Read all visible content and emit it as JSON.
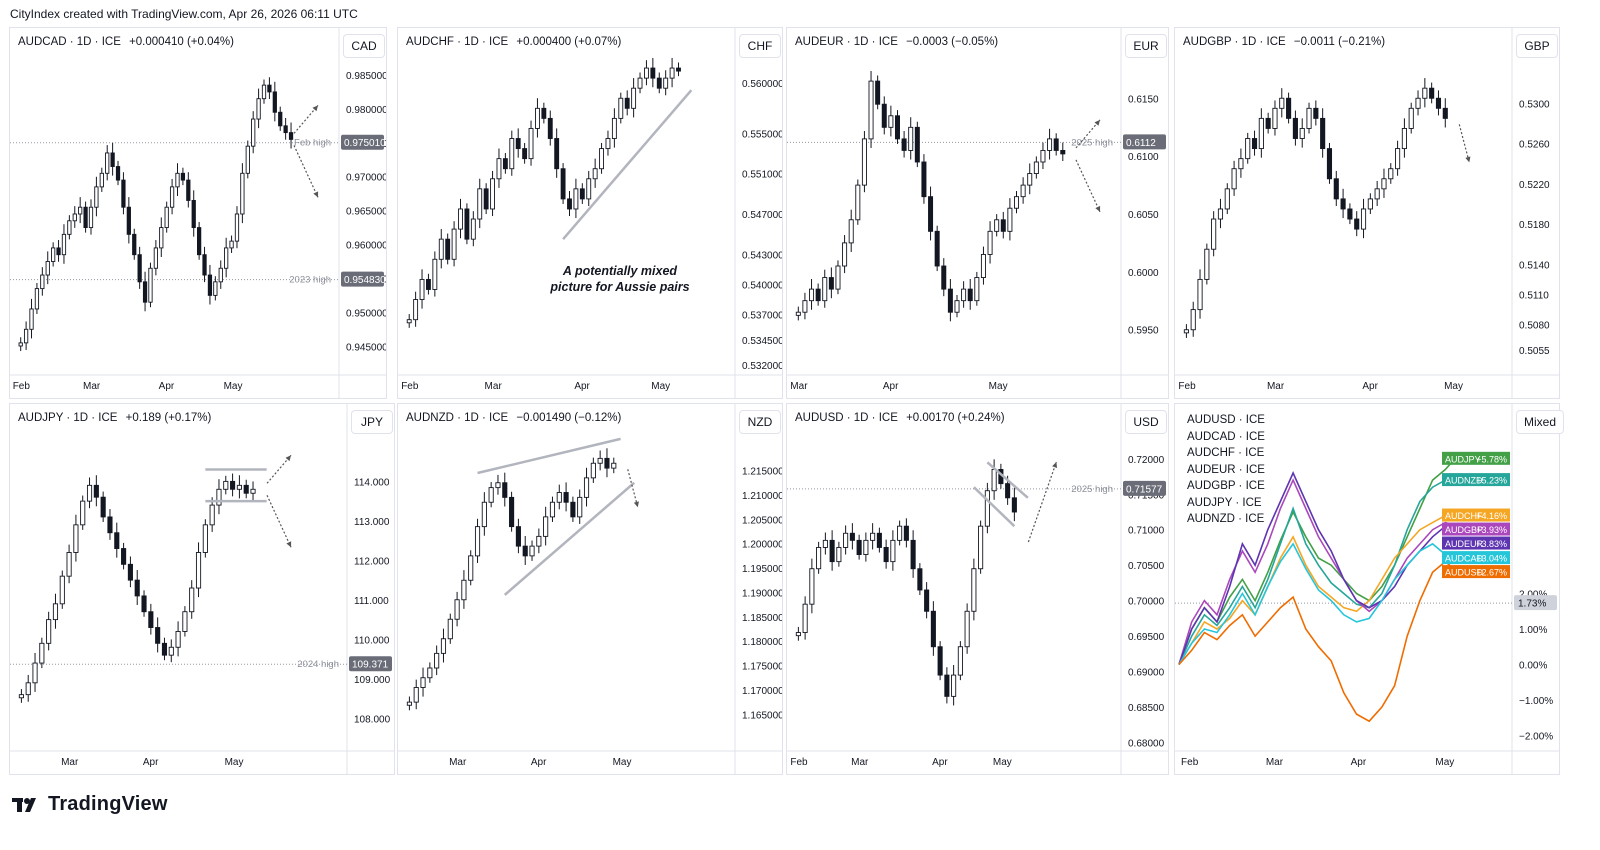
{
  "header": {
    "text": "CityIndex created with TradingView.com, Apr 26, 2026 06:11 UTC"
  },
  "footer": {
    "brand": "TradingView"
  },
  "colors": {
    "up": "#ffffff",
    "down": "#131722",
    "grid": "#f0f3fa",
    "guide": "#b2b5be",
    "trend": "#b2b5be"
  },
  "chart_data": [
    {
      "type": "candlestick",
      "symbol": "AUDCAD",
      "title": "AUDCAD · 1D · ICE",
      "change": "+0.000410 (+0.04%)",
      "currency": "CAD",
      "ylim": [
        0.9415,
        0.9875
      ],
      "x_labels": [
        "Feb",
        "Mar",
        "Apr",
        "May"
      ],
      "y_ticks": [
        "0.985000",
        "0.980000",
        "0.975000",
        "0.970000",
        "0.965000",
        "0.960000",
        "0.955000",
        "0.950000",
        "0.945000"
      ],
      "y_tick_values": [
        0.985,
        0.98,
        0.975,
        0.97,
        0.965,
        0.96,
        0.955,
        0.95,
        0.945
      ],
      "levels": [
        {
          "label": "Feb high",
          "value": 0.97501,
          "badge": "0.975010"
        },
        {
          "label": "2023 high",
          "value": 0.95483,
          "badge": "0.954830"
        }
      ],
      "closes": [
        0.9455,
        0.9475,
        0.9505,
        0.9535,
        0.9555,
        0.9575,
        0.9595,
        0.9585,
        0.9615,
        0.9635,
        0.9645,
        0.9655,
        0.9625,
        0.9655,
        0.9685,
        0.9705,
        0.9735,
        0.9715,
        0.9695,
        0.9655,
        0.9615,
        0.9585,
        0.9545,
        0.9515,
        0.9565,
        0.9595,
        0.9625,
        0.9655,
        0.9685,
        0.9705,
        0.9695,
        0.9665,
        0.9625,
        0.9585,
        0.9555,
        0.9525,
        0.9545,
        0.9565,
        0.9595,
        0.9605,
        0.9645,
        0.9705,
        0.9745,
        0.9785,
        0.9815,
        0.9835,
        0.9825,
        0.9795,
        0.9775,
        0.9765,
        0.9755
      ],
      "arrows": "split",
      "events": [],
      "months_at": [
        0,
        13,
        27,
        39
      ]
    },
    {
      "type": "candlestick",
      "symbol": "AUDCHF",
      "title": "AUDCHF · 1D · ICE",
      "change": "+0.000400 (+0.07%)",
      "currency": "CHF",
      "ylim": [
        0.5315,
        0.5625
      ],
      "x_labels": [
        "Feb",
        "Mar",
        "Apr",
        "May"
      ],
      "y_ticks": [
        "0.560000",
        "0.555000",
        "0.551000",
        "0.547000",
        "0.543000",
        "0.540000",
        "0.537000",
        "0.534500",
        "0.532000"
      ],
      "y_tick_values": [
        0.56,
        0.555,
        0.551,
        0.547,
        0.543,
        0.54,
        0.537,
        0.5345,
        0.532
      ],
      "levels": [],
      "annotation": "A potentially mixed picture for Aussie pairs",
      "closes": [
        0.5365,
        0.5385,
        0.5405,
        0.5395,
        0.5425,
        0.5445,
        0.5425,
        0.5455,
        0.5475,
        0.5445,
        0.5465,
        0.5495,
        0.5475,
        0.5505,
        0.5525,
        0.5515,
        0.5545,
        0.5535,
        0.5525,
        0.5555,
        0.5575,
        0.5565,
        0.5545,
        0.5515,
        0.5485,
        0.5475,
        0.5495,
        0.5485,
        0.5505,
        0.5515,
        0.5535,
        0.5545,
        0.5565,
        0.5585,
        0.5575,
        0.5595,
        0.5605,
        0.5615,
        0.5605,
        0.5595,
        0.5605,
        0.5615,
        0.5612
      ],
      "arrows": "none",
      "events": [],
      "months_at": [
        0,
        13,
        27,
        39
      ]
    },
    {
      "type": "candlestick",
      "symbol": "AUDEUR",
      "title": "AUDEUR · 1D · ICE",
      "change": "−0.0003 (−0.05%)",
      "currency": "EUR",
      "ylim": [
        0.5915,
        0.6185
      ],
      "x_labels": [
        "Mar",
        "Apr",
        "May"
      ],
      "y_ticks": [
        "0.6150",
        "0.6100",
        "0.6050",
        "0.6000",
        "0.5950"
      ],
      "y_tick_values": [
        0.615,
        0.61,
        0.605,
        0.6,
        0.595
      ],
      "levels": [
        {
          "label": "2025 high",
          "value": 0.6112,
          "badge": "0.6112"
        }
      ],
      "closes": [
        0.5965,
        0.5975,
        0.5985,
        0.5975,
        0.5995,
        0.5985,
        0.6005,
        0.6025,
        0.6045,
        0.6075,
        0.6115,
        0.6165,
        0.6145,
        0.6125,
        0.6135,
        0.6115,
        0.6105,
        0.6125,
        0.6095,
        0.6065,
        0.6035,
        0.6005,
        0.5985,
        0.5965,
        0.5975,
        0.5985,
        0.5975,
        0.5995,
        0.6015,
        0.6035,
        0.6045,
        0.6035,
        0.6055,
        0.6065,
        0.6075,
        0.6085,
        0.6095,
        0.6105,
        0.6115,
        0.6105,
        0.6102
      ],
      "arrows": "split",
      "events": [],
      "months_at": [
        0,
        14,
        30,
        39
      ]
    },
    {
      "type": "candlestick",
      "symbol": "AUDGBP",
      "title": "AUDGBP · 1D · ICE",
      "change": "−0.0011 (−0.21%)",
      "currency": "GBP",
      "ylim": [
        0.5035,
        0.5345
      ],
      "x_labels": [
        "Feb",
        "Mar",
        "Apr",
        "May"
      ],
      "y_ticks": [
        "0.5300",
        "0.5260",
        "0.5220",
        "0.5180",
        "0.5140",
        "0.5110",
        "0.5080",
        "0.5055"
      ],
      "y_tick_values": [
        0.53,
        0.526,
        0.522,
        0.518,
        0.514,
        0.511,
        0.508,
        0.5055
      ],
      "levels": [],
      "closes": [
        0.5075,
        0.5095,
        0.5125,
        0.5155,
        0.5185,
        0.5195,
        0.5215,
        0.5235,
        0.5245,
        0.5265,
        0.5255,
        0.5285,
        0.5275,
        0.5295,
        0.5305,
        0.5285,
        0.5265,
        0.5275,
        0.5295,
        0.5285,
        0.5255,
        0.5225,
        0.5205,
        0.5195,
        0.5185,
        0.5175,
        0.5195,
        0.5205,
        0.5215,
        0.5225,
        0.5235,
        0.5255,
        0.5275,
        0.5295,
        0.5305,
        0.5315,
        0.5305,
        0.5295,
        0.5285
      ],
      "arrows": "down",
      "events": [],
      "months_at": [
        0,
        13,
        27,
        39
      ]
    },
    {
      "type": "candlestick",
      "symbol": "AUDJPY",
      "title": "AUDJPY · 1D · ICE",
      "change": "+0.189 (+0.17%)",
      "currency": "JPY",
      "ylim": [
        107.3,
        115.2
      ],
      "x_labels": [
        "Mar",
        "Apr",
        "May"
      ],
      "y_ticks": [
        "114.000",
        "113.000",
        "112.000",
        "111.000",
        "110.000",
        "109.000",
        "108.000"
      ],
      "y_tick_values": [
        114,
        113,
        112,
        111,
        110,
        109,
        108
      ],
      "levels": [
        {
          "label": "2024 high",
          "value": 109.371,
          "badge": "109.371"
        }
      ],
      "closes": [
        108.6,
        108.9,
        109.4,
        109.9,
        110.5,
        110.9,
        111.6,
        112.2,
        112.9,
        113.5,
        113.9,
        113.6,
        113.1,
        112.7,
        112.3,
        111.9,
        111.5,
        111.1,
        110.7,
        110.3,
        109.9,
        109.6,
        109.8,
        110.2,
        110.7,
        111.3,
        112.2,
        112.9,
        113.4,
        113.8,
        114.0,
        113.8,
        113.9,
        113.7,
        113.8
      ],
      "arrows": "split",
      "events": [],
      "months_at": [
        7,
        19,
        31
      ]
    },
    {
      "type": "candlestick",
      "symbol": "AUDNZD",
      "title": "AUDNZD · 1D · ICE",
      "change": "−0.001490 (−0.12%)",
      "currency": "NZD",
      "ylim": [
        1.1585,
        1.2225
      ],
      "x_labels": [
        "Mar",
        "Apr",
        "May"
      ],
      "y_ticks": [
        "1.215000",
        "1.210000",
        "1.205000",
        "1.200000",
        "1.195000",
        "1.190000",
        "1.185000",
        "1.180000",
        "1.175000",
        "1.170000",
        "1.165000"
      ],
      "y_tick_values": [
        1.215,
        1.21,
        1.205,
        1.2,
        1.195,
        1.19,
        1.185,
        1.18,
        1.175,
        1.17,
        1.165
      ],
      "levels": [],
      "closes": [
        1.1675,
        1.1705,
        1.1725,
        1.1745,
        1.1775,
        1.1805,
        1.1845,
        1.1885,
        1.1925,
        1.1975,
        1.2035,
        1.2085,
        1.2115,
        1.2125,
        1.2095,
        1.2035,
        1.1995,
        1.1975,
        1.1995,
        1.2015,
        1.2055,
        1.2085,
        1.2105,
        1.2085,
        1.2055,
        1.2095,
        1.2135,
        1.2165,
        1.2175,
        1.2155,
        1.2165
      ],
      "arrows": "down",
      "events": [],
      "months_at": [
        7,
        19,
        31
      ]
    },
    {
      "type": "candlestick",
      "symbol": "AUDUSD",
      "title": "AUDUSD · 1D · ICE",
      "change": "+0.00170 (+0.24%)",
      "currency": "USD",
      "ylim": [
        0.6795,
        0.7235
      ],
      "x_labels": [
        "Feb",
        "Mar",
        "Apr",
        "May"
      ],
      "y_ticks": [
        "0.72000",
        "0.71500",
        "0.71000",
        "0.70500",
        "0.70000",
        "0.69500",
        "0.69000",
        "0.68500",
        "0.68000"
      ],
      "y_tick_values": [
        0.72,
        0.715,
        0.71,
        0.705,
        0.7,
        0.695,
        0.69,
        0.685,
        0.68
      ],
      "levels": [
        {
          "label": "2025 high",
          "value": 0.71577,
          "badge": "0.71577"
        }
      ],
      "closes": [
        0.6955,
        0.6995,
        0.7045,
        0.7075,
        0.7085,
        0.7055,
        0.7075,
        0.7095,
        0.7085,
        0.7065,
        0.7085,
        0.7095,
        0.7075,
        0.7055,
        0.7085,
        0.7105,
        0.7085,
        0.7045,
        0.7015,
        0.6985,
        0.6935,
        0.6895,
        0.6865,
        0.6895,
        0.6935,
        0.6985,
        0.7045,
        0.7105,
        0.7155,
        0.7185,
        0.7165,
        0.7145,
        0.7125
      ],
      "arrows": "up",
      "events": [],
      "months_at": [
        0,
        9,
        21,
        30
      ]
    },
    {
      "type": "line",
      "symbol": "Mixed",
      "currency": "Mixed",
      "ylim": [
        -2.3,
        6.5
      ],
      "x_labels": [
        "Feb",
        "Mar",
        "Apr",
        "May"
      ],
      "y_ticks": [
        "2.00%",
        "1.00%",
        "0.00%",
        "−1.00%",
        "−2.00%"
      ],
      "y_tick_values": [
        2,
        1,
        0,
        -1,
        -2
      ],
      "legend": [
        "AUDUSD · ICE",
        "AUDCAD · ICE",
        "AUDCHF · ICE",
        "AUDEUR · ICE",
        "AUDGBP · ICE",
        "AUDJPY · ICE",
        "AUDNZD · ICE"
      ],
      "level_badge": {
        "value": 1.73,
        "text": "1.73%"
      },
      "series": [
        {
          "name": "AUDJPY",
          "label": "+5.78%",
          "color": "#43a047",
          "values": [
            0,
            1.0,
            1.6,
            1.2,
            1.9,
            2.4,
            1.8,
            2.6,
            3.5,
            4.3,
            3.6,
            3.0,
            2.8,
            2.4,
            2.0,
            1.8,
            2.2,
            2.8,
            3.6,
            4.4,
            5.2,
            5.5,
            5.9,
            5.8
          ]
        },
        {
          "name": "AUDNZD",
          "label": "+5.23%",
          "color": "#26a69a",
          "values": [
            0,
            0.8,
            1.4,
            1.1,
            1.6,
            2.2,
            1.6,
            2.4,
            3.4,
            4.4,
            3.4,
            2.8,
            2.3,
            2.0,
            1.7,
            1.6,
            2.0,
            2.8,
            3.8,
            4.6,
            5.0,
            5.2,
            5.3,
            5.2
          ]
        },
        {
          "name": "AUDCHF",
          "label": "+4.16%",
          "color": "#f5a623",
          "values": [
            0,
            0.6,
            1.2,
            1.0,
            1.3,
            1.8,
            1.4,
            2.2,
            3.0,
            3.6,
            2.8,
            2.2,
            1.9,
            1.6,
            1.5,
            1.8,
            2.4,
            3.0,
            3.4,
            3.8,
            4.0,
            4.2,
            4.2,
            4.2
          ]
        },
        {
          "name": "AUDGBP",
          "label": "+3.93%",
          "color": "#ab47bc",
          "values": [
            0,
            1.2,
            1.8,
            1.4,
            2.4,
            3.2,
            2.6,
            3.4,
            4.4,
            5.2,
            4.4,
            3.6,
            3.0,
            2.4,
            1.8,
            1.5,
            1.8,
            2.4,
            3.0,
            3.4,
            3.8,
            4.0,
            3.9,
            3.9
          ]
        },
        {
          "name": "AUDEUR",
          "label": "+3.83%",
          "color": "#5e35b1",
          "values": [
            0,
            1.0,
            1.6,
            1.2,
            2.2,
            3.4,
            2.8,
            3.8,
            4.6,
            5.4,
            4.6,
            3.8,
            3.2,
            2.4,
            1.8,
            1.6,
            1.8,
            2.2,
            2.8,
            3.2,
            3.6,
            3.9,
            3.8,
            3.8
          ]
        },
        {
          "name": "AUDCAD",
          "label": "+3.04%",
          "color": "#26c6da",
          "values": [
            0,
            0.6,
            1.0,
            0.9,
            1.4,
            2.0,
            1.4,
            2.2,
            2.9,
            3.4,
            2.7,
            2.1,
            1.8,
            1.4,
            1.2,
            1.3,
            1.8,
            2.4,
            2.8,
            3.2,
            3.4,
            3.1,
            3.0,
            3.0
          ]
        },
        {
          "name": "AUDUSD",
          "label": "+2.67%",
          "color": "#ef6c00",
          "values": [
            0,
            0.4,
            0.9,
            0.7,
            1.1,
            1.4,
            0.8,
            1.2,
            1.6,
            1.9,
            1.0,
            0.5,
            0.1,
            -0.8,
            -1.4,
            -1.6,
            -1.2,
            -0.6,
            0.8,
            1.8,
            2.6,
            2.9,
            2.6,
            2.7
          ]
        }
      ],
      "months_at": [
        0,
        7,
        14,
        21
      ]
    }
  ]
}
